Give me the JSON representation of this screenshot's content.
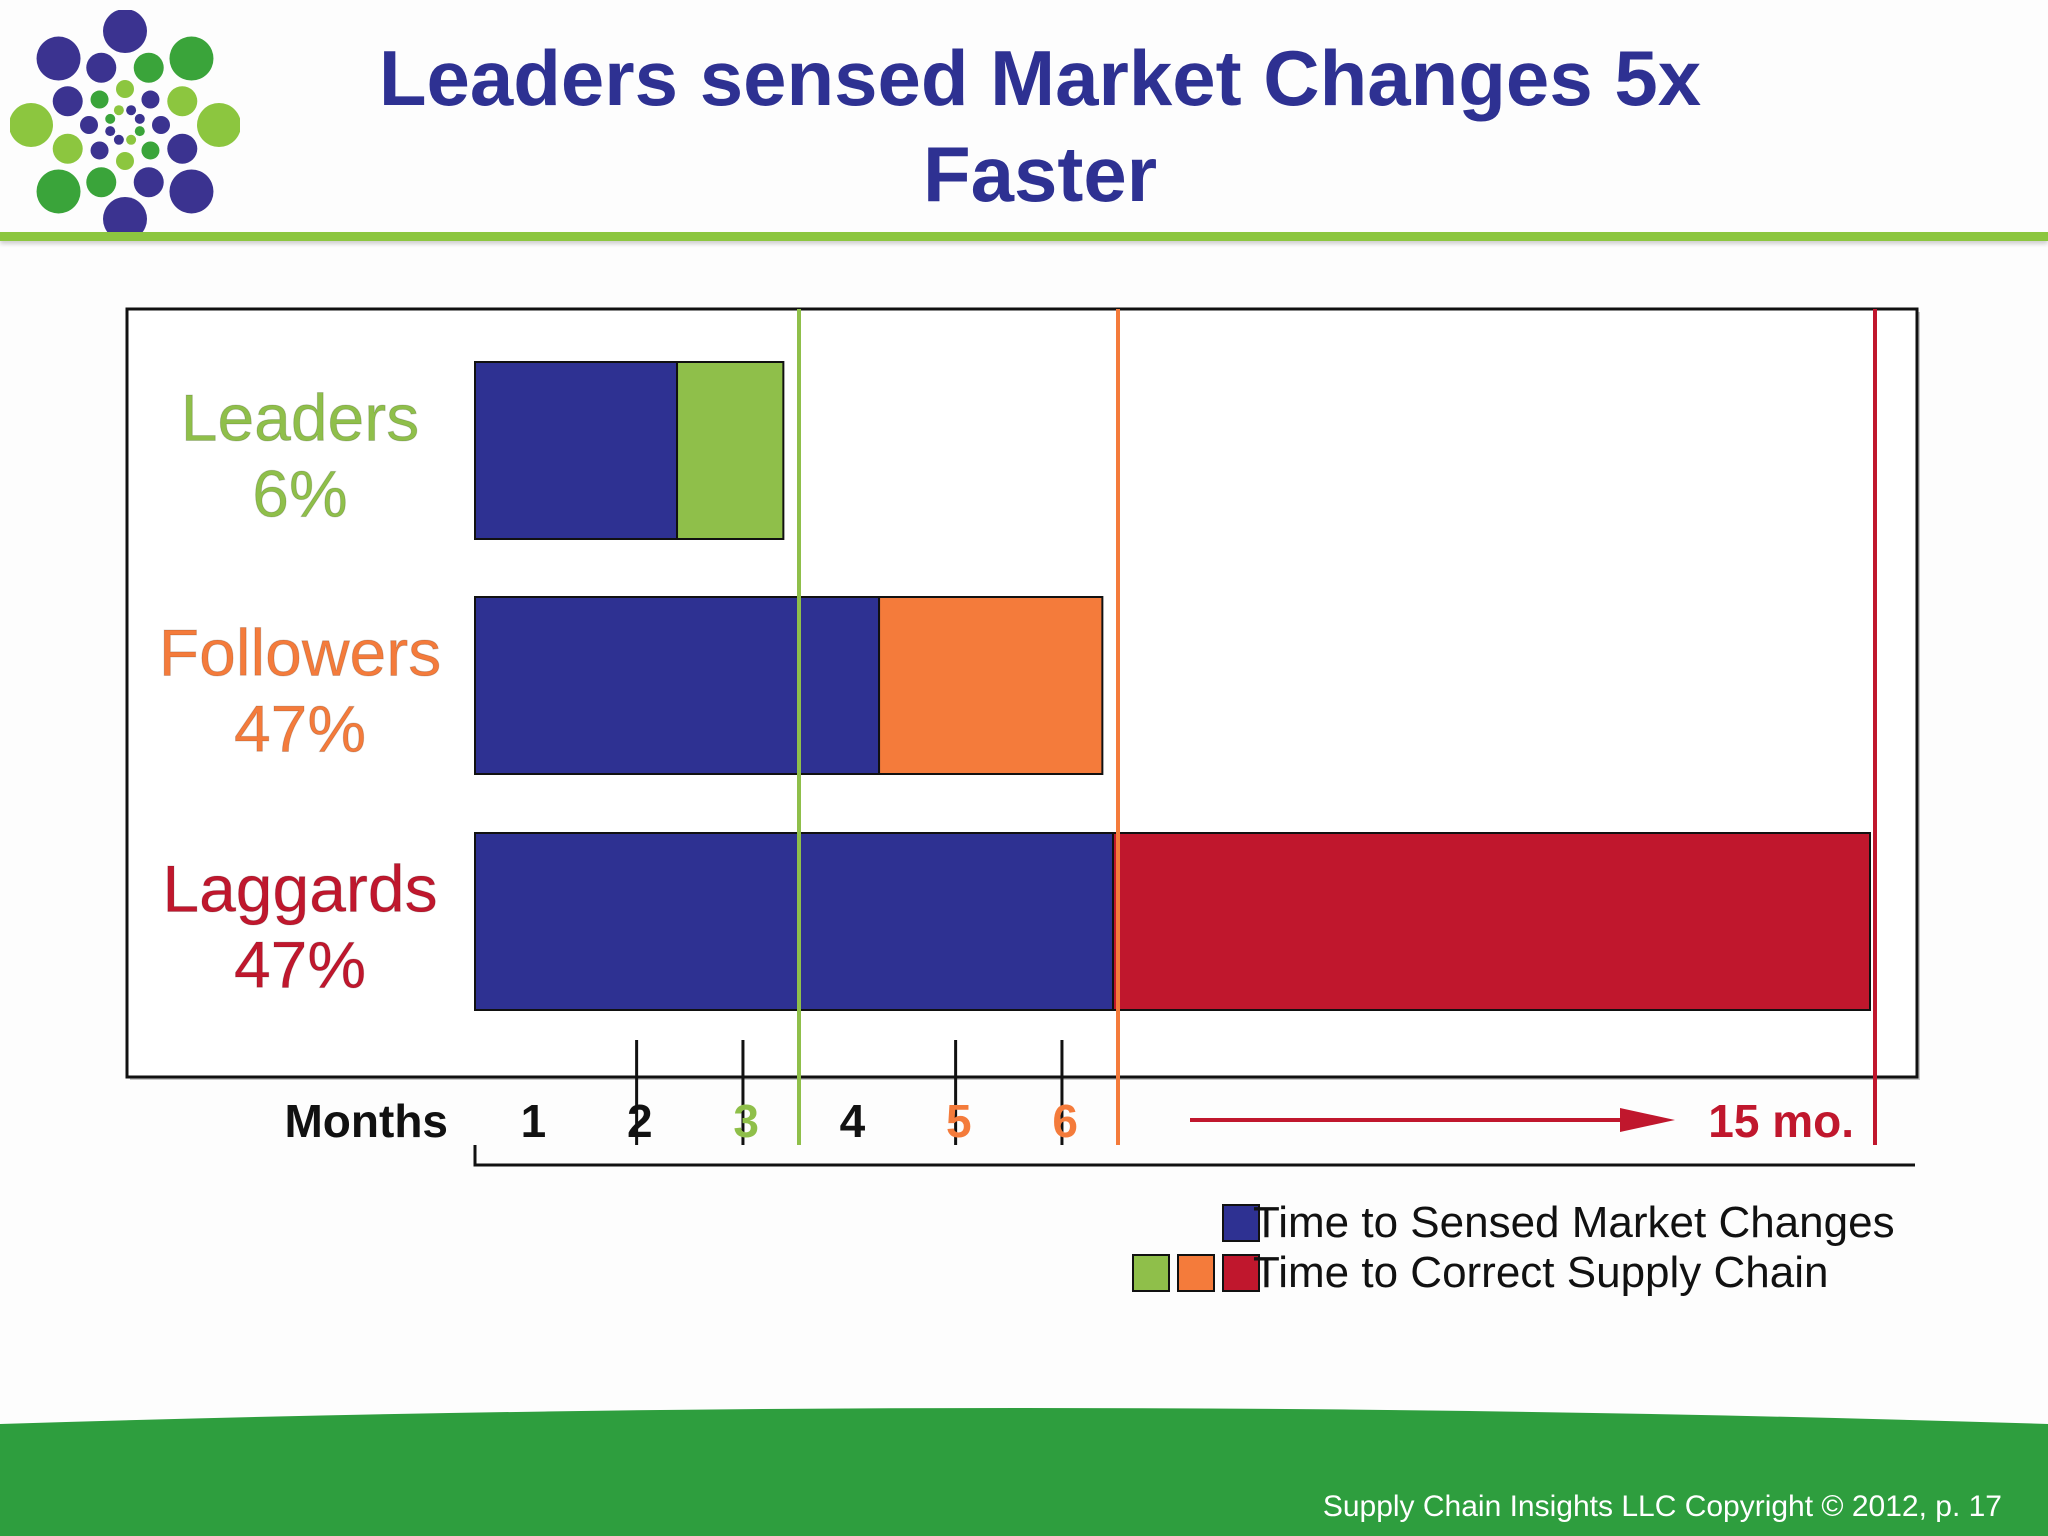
{
  "slide": {
    "title": "Leaders sensed Market Changes 5x Faster",
    "footer": "Supply Chain Insights LLC Copyright © 2012, p. 17"
  },
  "colors": {
    "title": "#2e3192",
    "sense": "#2e3192",
    "leaders": "#8fbf4a",
    "followers": "#f47b3b",
    "laggards": "#c0172d",
    "accent_green": "#8cc63f",
    "footer_green": "#2e9e3e"
  },
  "chart_data": {
    "type": "bar",
    "orientation": "horizontal",
    "stacked": true,
    "x_axis_label": "Months",
    "x_ticks": [
      {
        "value": 1,
        "label": "1",
        "color": "#111111"
      },
      {
        "value": 2,
        "label": "2",
        "color": "#111111"
      },
      {
        "value": 3,
        "label": "3",
        "color": "#8fbf4a"
      },
      {
        "value": 4,
        "label": "4",
        "color": "#111111"
      },
      {
        "value": 5,
        "label": "5",
        "color": "#f47b3b"
      },
      {
        "value": 6,
        "label": "6",
        "color": "#f47b3b"
      },
      {
        "value": 15,
        "label": "15 mo.",
        "color": "#c0172d"
      }
    ],
    "categories": [
      {
        "name": "Leaders",
        "share": "6%",
        "color": "#8fbf4a",
        "sense_months": 1.9,
        "correct_months": 1.0,
        "total_months": 3
      },
      {
        "name": "Followers",
        "share": "47%",
        "color": "#f47b3b",
        "sense_months": 3.8,
        "correct_months": 2.1,
        "total_months": 6
      },
      {
        "name": "Laggards",
        "share": "47%",
        "color": "#c0172d",
        "sense_months": 6,
        "correct_months": 9,
        "total_months": 15
      }
    ],
    "legend": [
      {
        "label": "Time to Sensed Market Changes",
        "swatches": [
          "#2e3192"
        ]
      },
      {
        "label": "Time to Correct Supply Chain",
        "swatches": [
          "#8fbf4a",
          "#f47b3b",
          "#c0172d"
        ]
      }
    ],
    "legend_position": "bottom-right"
  }
}
